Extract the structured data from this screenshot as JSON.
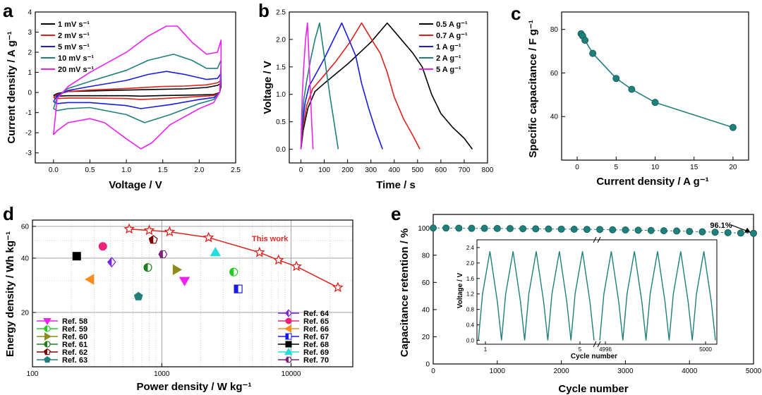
{
  "panels": [
    {
      "id": "a",
      "type": "line",
      "label": "a",
      "xlabel": "Voltage / V",
      "ylabel": "Current density / A g⁻¹",
      "xlim": [
        -0.25,
        2.5
      ],
      "ylim": [
        -3.5,
        4.0
      ],
      "xticks": [
        0.0,
        0.5,
        1.0,
        1.5,
        2.0,
        2.5
      ],
      "xtick_labels": [
        "0.0",
        "0.5",
        "1.0",
        "1.5",
        "2.0",
        "2.5"
      ],
      "yticks": [
        -3,
        -2,
        -1,
        0,
        1,
        2,
        3,
        4
      ],
      "ytick_labels": [
        "-3",
        "-2",
        "-1",
        "0",
        "1",
        "2",
        "3",
        "4"
      ],
      "legend": "top-left",
      "series": [
        {
          "name": "1 mV s⁻¹",
          "color": "#000000",
          "x": [
            0.0,
            0.05,
            0.2,
            0.5,
            1.0,
            1.5,
            1.8,
            2.1,
            2.25,
            2.3,
            2.3,
            2.28,
            2.2,
            2.0,
            1.5,
            1.2,
            1.0,
            0.5,
            0.2,
            0.05,
            0.0
          ],
          "y": [
            -0.15,
            -0.05,
            0.05,
            0.08,
            0.12,
            0.16,
            0.18,
            0.25,
            0.35,
            0.45,
            0.3,
            0.0,
            -0.1,
            -0.12,
            -0.15,
            -0.18,
            -0.16,
            -0.16,
            -0.16,
            -0.18,
            -0.15
          ]
        },
        {
          "name": "2 mV s⁻¹",
          "color": "#e0201b",
          "x": [
            0.0,
            0.05,
            0.2,
            0.5,
            1.0,
            1.5,
            1.8,
            2.1,
            2.25,
            2.3,
            2.3,
            2.28,
            2.2,
            2.0,
            1.5,
            1.2,
            1.0,
            0.5,
            0.2,
            0.05,
            0.0
          ],
          "y": [
            -0.25,
            -0.1,
            0.05,
            0.12,
            0.2,
            0.3,
            0.32,
            0.38,
            0.48,
            0.6,
            0.4,
            0.0,
            -0.15,
            -0.2,
            -0.3,
            -0.35,
            -0.3,
            -0.28,
            -0.28,
            -0.3,
            -0.25
          ]
        },
        {
          "name": "5 mV s⁻¹",
          "color": "#1a1ae6",
          "x": [
            0.0,
            0.05,
            0.2,
            0.5,
            1.0,
            1.3,
            1.55,
            1.8,
            2.1,
            2.25,
            2.3,
            2.3,
            2.28,
            2.2,
            2.0,
            1.6,
            1.2,
            1.0,
            0.5,
            0.2,
            0.05,
            0.0
          ],
          "y": [
            -0.45,
            -0.15,
            0.1,
            0.3,
            0.6,
            0.9,
            1.05,
            0.9,
            0.65,
            0.7,
            0.95,
            0.6,
            0.0,
            -0.25,
            -0.35,
            -0.6,
            -0.8,
            -0.65,
            -0.5,
            -0.5,
            -0.55,
            -0.45
          ]
        },
        {
          "name": "10 mV s⁻¹",
          "color": "#1f7f7a",
          "x": [
            0.0,
            0.05,
            0.2,
            0.5,
            1.0,
            1.3,
            1.65,
            1.9,
            2.1,
            2.25,
            2.3,
            2.3,
            2.28,
            2.2,
            2.0,
            1.6,
            1.25,
            1.0,
            0.5,
            0.2,
            0.05,
            0.0
          ],
          "y": [
            -0.8,
            -0.25,
            0.2,
            0.55,
            1.1,
            1.6,
            1.9,
            1.6,
            1.2,
            1.2,
            1.6,
            0.9,
            0.0,
            -0.35,
            -0.55,
            -1.1,
            -1.5,
            -1.1,
            -0.75,
            -0.8,
            -0.9,
            -0.8
          ]
        },
        {
          "name": "20 mV s⁻¹",
          "color": "#ee22ee",
          "x": [
            0.0,
            0.05,
            0.2,
            0.5,
            1.0,
            1.3,
            1.55,
            1.7,
            1.9,
            2.1,
            2.25,
            2.3,
            2.3,
            2.28,
            2.2,
            2.0,
            1.6,
            1.35,
            1.2,
            1.0,
            0.7,
            0.5,
            0.2,
            0.05,
            0.0
          ],
          "y": [
            -2.1,
            -0.3,
            0.3,
            1.0,
            2.0,
            2.8,
            3.3,
            3.3,
            2.5,
            1.9,
            2.0,
            2.6,
            1.5,
            0.0,
            -0.5,
            -0.8,
            -1.6,
            -2.5,
            -2.8,
            -2.3,
            -1.5,
            -1.3,
            -1.5,
            -1.9,
            -2.1
          ]
        }
      ]
    },
    {
      "id": "b",
      "type": "line",
      "label": "b",
      "xlabel": "Time / s",
      "ylabel": "Voltage / V",
      "xlim": [
        -50,
        800
      ],
      "ylim": [
        -0.25,
        2.5
      ],
      "xticks": [
        0,
        100,
        200,
        300,
        400,
        500,
        600,
        700,
        800
      ],
      "xtick_labels": [
        "0",
        "100",
        "200",
        "300",
        "400",
        "500",
        "600",
        "700",
        "800"
      ],
      "yticks": [
        0.0,
        0.5,
        1.0,
        1.5,
        2.0,
        2.5
      ],
      "ytick_labels": [
        "0.0",
        "0.5",
        "1.0",
        "1.5",
        "2.0",
        "2.5"
      ],
      "legend": "top-right",
      "series": [
        {
          "name": "0.5 A g⁻¹",
          "color": "#000000",
          "x": [
            0,
            10,
            30,
            60,
            100,
            200,
            300,
            370,
            440,
            480,
            520,
            560,
            600,
            650,
            700,
            735
          ],
          "y": [
            0.0,
            0.35,
            0.75,
            1.05,
            1.2,
            1.55,
            1.95,
            2.3,
            1.95,
            1.75,
            1.5,
            1.0,
            0.65,
            0.4,
            0.2,
            0.0
          ]
        },
        {
          "name": "0.7 A g⁻¹",
          "color": "#e0201b",
          "x": [
            0,
            8,
            25,
            50,
            80,
            150,
            210,
            260,
            310,
            340,
            370,
            400,
            440,
            480,
            510
          ],
          "y": [
            0.0,
            0.4,
            0.8,
            1.1,
            1.25,
            1.6,
            1.95,
            2.3,
            1.95,
            1.75,
            1.4,
            0.95,
            0.55,
            0.25,
            0.0
          ]
        },
        {
          "name": "1 A g⁻¹",
          "color": "#1a1ae6",
          "x": [
            0,
            5,
            18,
            35,
            55,
            100,
            140,
            175,
            210,
            235,
            260,
            290,
            320,
            350
          ],
          "y": [
            0.0,
            0.4,
            0.85,
            1.15,
            1.3,
            1.65,
            2.0,
            2.3,
            1.95,
            1.7,
            1.2,
            0.75,
            0.35,
            0.0
          ]
        },
        {
          "name": "2 A g⁻¹",
          "color": "#1f7f7a",
          "x": [
            0,
            4,
            12,
            25,
            40,
            60,
            80,
            95,
            110,
            125,
            140,
            160
          ],
          "y": [
            0.0,
            0.45,
            0.9,
            1.25,
            1.6,
            2.0,
            2.3,
            1.85,
            1.4,
            0.95,
            0.55,
            0.0
          ]
        },
        {
          "name": "5 A g⁻¹",
          "color": "#ee22ee",
          "x": [
            0,
            2,
            6,
            12,
            20,
            28,
            34,
            40,
            46,
            52
          ],
          "y": [
            0.0,
            0.45,
            1.0,
            1.5,
            2.0,
            2.3,
            1.7,
            1.1,
            0.5,
            0.0
          ]
        }
      ]
    },
    {
      "id": "c",
      "type": "line",
      "label": "c",
      "xlabel": "Current density / A g⁻¹",
      "ylabel": "Specific capacitance / F g⁻¹",
      "xlim": [
        -2,
        22
      ],
      "ylim": [
        20,
        88
      ],
      "xticks": [
        0,
        5,
        10,
        15,
        20
      ],
      "xtick_labels": [
        "0",
        "5",
        "10",
        "15",
        "20"
      ],
      "yticks": [
        40,
        60,
        80
      ],
      "ytick_labels": [
        "40",
        "60",
        "80"
      ],
      "color": "#1f7f7a",
      "x": [
        0.5,
        0.7,
        1.0,
        2.0,
        5.0,
        7.0,
        10.0,
        20.0
      ],
      "y": [
        78.0,
        77.0,
        75.0,
        69.0,
        57.5,
        52.5,
        46.5,
        35.0
      ]
    },
    {
      "id": "d",
      "type": "scatter",
      "label": "d",
      "xlabel": "Power density / W kg⁻¹",
      "ylabel": "Energy density / Wh kg⁻¹",
      "xscale": "log",
      "yscale": "log",
      "xlim": [
        100,
        30000
      ],
      "ylim": [
        10,
        65
      ],
      "xticks": [
        100,
        1000,
        10000
      ],
      "xtick_labels": [
        "100",
        "1000",
        "10000"
      ],
      "yticks": [
        20,
        40,
        60
      ],
      "ytick_labels": [
        "20",
        "40",
        "60"
      ],
      "this_work": {
        "name": "This work",
        "color": "#e0201b",
        "x": [
          560,
          800,
          1150,
          2300,
          5700,
          8000,
          11000,
          23000
        ],
        "y": [
          58,
          57,
          56,
          52,
          43,
          39,
          36,
          27.5
        ]
      },
      "references": [
        {
          "name": "Ref. 58",
          "marker": "tri-down",
          "color": "#ee22ee",
          "x": 1500,
          "y": 30
        },
        {
          "name": "Ref. 59",
          "marker": "circle-half",
          "color": "#22cc22",
          "x": 3600,
          "y": 33.5
        },
        {
          "name": "Ref. 60",
          "marker": "tri-right",
          "color": "#8b8b1a",
          "x": 1300,
          "y": 34.5
        },
        {
          "name": "Ref. 61",
          "marker": "circle-half",
          "color": "#1f7f1f",
          "x": 780,
          "y": 35.5
        },
        {
          "name": "Ref. 62",
          "marker": "pentagon-half",
          "color": "#800000",
          "x": 860,
          "y": 50.5
        },
        {
          "name": "Ref. 63",
          "marker": "pentagon",
          "color": "#1f7f7a",
          "x": 660,
          "y": 24.5
        },
        {
          "name": "Ref. 64",
          "marker": "diamond-half",
          "color": "#7a22dd",
          "x": 410,
          "y": 38
        },
        {
          "name": "Ref. 65",
          "marker": "circle",
          "color": "#ee2277",
          "x": 350,
          "y": 46.5
        },
        {
          "name": "Ref. 66",
          "marker": "tri-left",
          "color": "#ff8c1a",
          "x": 280,
          "y": 30.5
        },
        {
          "name": "Ref. 67",
          "marker": "square-half",
          "color": "#1a1ae6",
          "x": 3900,
          "y": 27
        },
        {
          "name": "Ref. 68",
          "marker": "square",
          "color": "#000000",
          "x": 220,
          "y": 41
        },
        {
          "name": "Ref. 69",
          "marker": "tri-up",
          "color": "#22dddd",
          "x": 2600,
          "y": 43
        },
        {
          "name": "Ref. 70",
          "marker": "hexagon-half",
          "color": "#7a2277",
          "x": 1020,
          "y": 42
        }
      ]
    },
    {
      "id": "e",
      "type": "scatter",
      "label": "e",
      "xlabel": "Cycle number",
      "ylabel": "Capacitance retention / %",
      "xlim": [
        0,
        5000
      ],
      "ylim": [
        0,
        110
      ],
      "xticks": [
        0,
        1000,
        2000,
        3000,
        4000,
        5000
      ],
      "xtick_labels": [
        "0",
        "1000",
        "2000",
        "3000",
        "4000",
        "5000"
      ],
      "yticks": [
        0,
        20,
        40,
        60,
        80,
        100
      ],
      "ytick_labels": [
        "0",
        "20",
        "40",
        "60",
        "80",
        "100"
      ],
      "color": "#1f7f7a",
      "x": [
        0,
        200,
        400,
        600,
        800,
        1000,
        1200,
        1400,
        1600,
        1800,
        2000,
        2200,
        2400,
        2600,
        2800,
        3000,
        3200,
        3400,
        3600,
        3800,
        4000,
        4200,
        4400,
        4600,
        4800,
        5000
      ],
      "y": [
        100,
        100,
        99.9,
        99.8,
        99.8,
        99.7,
        99.6,
        99.5,
        99.4,
        99.3,
        99.2,
        99.1,
        99.0,
        98.9,
        98.7,
        98.6,
        98.4,
        98.2,
        98.0,
        97.8,
        97.5,
        97.2,
        96.9,
        96.6,
        96.3,
        96.1
      ],
      "annotation": "96.1%",
      "inset": {
        "xlabel": "Cycle number",
        "ylabel": "Voltage / V",
        "ylim": [
          -0.1,
          2.6
        ],
        "yticks": [
          0.0,
          0.4,
          0.8,
          1.2,
          1.6,
          2.0,
          2.4
        ],
        "ytick_labels": [
          "0.0",
          "0.4",
          "0.8",
          "1.2",
          "1.6",
          "2.0",
          "2.4"
        ],
        "xtick_labels": [
          "1",
          "5",
          "4996",
          "5000"
        ],
        "cycles_before_break": 5,
        "cycles_after_break": 5,
        "vmax": 2.3,
        "vmin": 0.0
      }
    }
  ]
}
